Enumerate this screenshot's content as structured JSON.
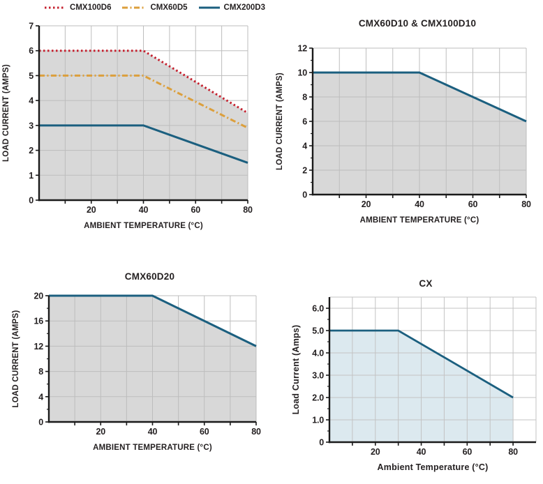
{
  "figure": {
    "description": "Load current derating curves vs ambient temperature",
    "background": "#ffffff",
    "text_color": "#231f20",
    "axis_color": "#1a1a1a"
  },
  "chart_data": [
    {
      "type": "line",
      "title": "",
      "xlabel": "AMBIENT TEMPERATURE (°C)",
      "ylabel": "LOAD CURRENT (AMPS)",
      "xlim": [
        0,
        80
      ],
      "ylim": [
        0,
        7
      ],
      "grid_on": true,
      "grid_color": "#bdbdbd",
      "xticks_labeled": [
        20,
        40,
        60,
        80
      ],
      "xticks_minor": [
        10,
        30,
        50,
        70
      ],
      "grid_x": [
        10,
        20,
        30,
        40,
        50,
        60,
        70,
        80
      ],
      "yticks_labeled": [
        0,
        1,
        2,
        3,
        4,
        5,
        6,
        7
      ],
      "ytick_labels": [
        "0",
        "1",
        "2",
        "3",
        "4",
        "5",
        "6",
        "7"
      ],
      "yticks_minor": [],
      "grid_y": [
        1,
        2,
        3,
        4,
        5,
        6,
        7
      ],
      "legend_position": "top",
      "legend": [
        {
          "label": "CMX100D6",
          "color": "#c5202e",
          "dash": "2.5 3.5"
        },
        {
          "label": "CMX60D5",
          "color": "#dc9f3c",
          "dash": "8 3.5 2 3.5"
        },
        {
          "label": "CMX200D3",
          "color": "#1b5f7f",
          "dash": ""
        }
      ],
      "fill": {
        "under_series": 0,
        "color": "#d8d8d8",
        "to_x": 80
      },
      "series": [
        {
          "name": "CMX100D6",
          "color": "#c5202e",
          "dash": "2.5 3.5",
          "width": 3,
          "points": [
            [
              0,
              6
            ],
            [
              40,
              6
            ],
            [
              80,
              3.5
            ]
          ]
        },
        {
          "name": "CMX60D5",
          "color": "#dc9f3c",
          "dash": "8 3.5 2 3.5",
          "width": 3,
          "points": [
            [
              0,
              5
            ],
            [
              40,
              5
            ],
            [
              80,
              2.9
            ]
          ]
        },
        {
          "name": "CMX200D3",
          "color": "#1b5f7f",
          "dash": "",
          "width": 3,
          "points": [
            [
              0,
              3
            ],
            [
              40,
              3
            ],
            [
              80,
              1.5
            ]
          ]
        }
      ]
    },
    {
      "type": "line",
      "title": "CMX60D10 & CMX100D10",
      "xlabel": "AMBIENT TEMPERATURE (°C)",
      "ylabel": "LOAD CURRENT (AMPS)",
      "xlim": [
        0,
        80
      ],
      "ylim": [
        0,
        12
      ],
      "grid_on": true,
      "grid_color": "#bdbdbd",
      "xticks_labeled": [
        20,
        40,
        60,
        80
      ],
      "xticks_minor": [
        10,
        30,
        50,
        70
      ],
      "grid_x": [
        10,
        20,
        30,
        40,
        50,
        60,
        70,
        80
      ],
      "yticks_labeled": [
        0,
        2,
        4,
        6,
        8,
        10,
        12
      ],
      "ytick_labels": [
        "0",
        "2",
        "4",
        "6",
        "8",
        "10",
        "12"
      ],
      "yticks_minor": [
        1,
        3,
        5,
        7,
        9,
        11
      ],
      "grid_y": [
        2,
        4,
        6,
        8,
        10,
        12
      ],
      "legend": null,
      "fill": {
        "under_series": 0,
        "color": "#d8d8d8",
        "to_x": 80
      },
      "series": [
        {
          "name": "CMX60D10 & CMX100D10",
          "color": "#1b5f7f",
          "dash": "",
          "width": 3,
          "points": [
            [
              0,
              10
            ],
            [
              40,
              10
            ],
            [
              80,
              6
            ]
          ]
        }
      ]
    },
    {
      "type": "line",
      "title": "CMX60D20",
      "xlabel": "AMBIENT TEMPERATURE (°C)",
      "ylabel": "LOAD CURRENT (AMPS)",
      "xlim": [
        0,
        80
      ],
      "ylim": [
        0,
        20
      ],
      "grid_on": true,
      "grid_color": "#bdbdbd",
      "xticks_labeled": [
        20,
        40,
        60,
        80
      ],
      "xticks_minor": [
        10,
        30,
        50,
        70
      ],
      "grid_x": [
        10,
        20,
        30,
        40,
        50,
        60,
        70,
        80
      ],
      "yticks_labeled": [
        0,
        4,
        8,
        12,
        16,
        20
      ],
      "ytick_labels": [
        "0",
        "4",
        "8",
        "12",
        "16",
        "20"
      ],
      "yticks_minor": [
        2,
        6,
        10,
        14,
        18
      ],
      "grid_y": [
        4,
        8,
        12,
        16,
        20
      ],
      "legend": null,
      "fill": {
        "under_series": 0,
        "color": "#d8d8d8",
        "to_x": 80
      },
      "series": [
        {
          "name": "CMX60D20",
          "color": "#1b5f7f",
          "dash": "",
          "width": 3,
          "points": [
            [
              0,
              20
            ],
            [
              40,
              20
            ],
            [
              80,
              12
            ]
          ]
        }
      ]
    },
    {
      "type": "line",
      "title": "CX",
      "xlabel": "Ambient Temperature (°C)",
      "ylabel": "Load Current (Amps)",
      "bold_labels": true,
      "xlim": [
        0,
        90
      ],
      "ylim": [
        0,
        6.5
      ],
      "grid_on": true,
      "grid_color": "#c3c3c3",
      "xticks_labeled": [
        20,
        40,
        60,
        80
      ],
      "xticks_minor": [
        10,
        30,
        50,
        70
      ],
      "grid_x": [
        10,
        20,
        30,
        40,
        50,
        60,
        70,
        80,
        90
      ],
      "yticks_labeled": [
        0,
        1,
        2,
        3,
        4,
        5,
        6
      ],
      "ytick_labels": [
        "0",
        "1.0",
        "2.0",
        "3.0",
        "4.0",
        "5.0",
        "6.0"
      ],
      "yticks_minor": [
        0.5,
        1.5,
        2.5,
        3.5,
        4.5,
        5.5
      ],
      "grid_y": [
        1,
        2,
        3,
        4,
        5,
        6,
        6.5
      ],
      "legend": null,
      "fill": {
        "under_series": 0,
        "color": "#dce9ef",
        "to_x": 80
      },
      "series": [
        {
          "name": "CX",
          "color": "#1b5f7f",
          "dash": "",
          "width": 2.8,
          "points": [
            [
              0,
              5
            ],
            [
              30,
              5
            ],
            [
              80,
              2
            ]
          ]
        }
      ]
    }
  ]
}
